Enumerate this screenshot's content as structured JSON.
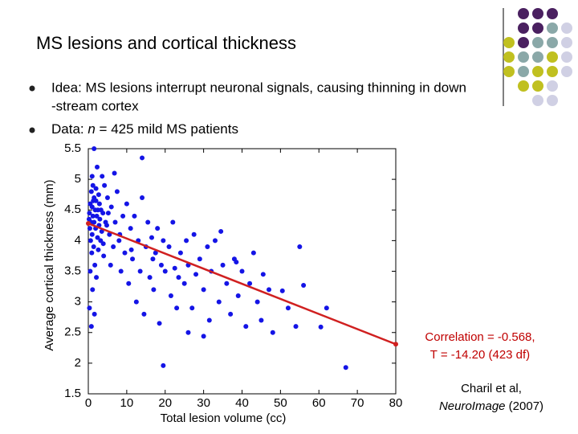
{
  "title": "MS lesions and cortical thickness",
  "bullets": [
    {
      "lines": [
        "Idea: MS lesions interrupt neuronal signals, causing thinning in down",
        "-stream cortex"
      ]
    },
    {
      "parts": [
        "Data: ",
        "n",
        " = 425 mild MS patients"
      ]
    }
  ],
  "chart_data": {
    "type": "scatter",
    "x_label": "Total lesion volume (cc)",
    "y_label": "Average cortical thickness (mm)",
    "xlim": [
      0,
      80
    ],
    "ylim": [
      1.5,
      5.5
    ],
    "xticks": [
      0,
      10,
      20,
      30,
      40,
      50,
      60,
      70,
      80
    ],
    "yticks": [
      1.5,
      2,
      2.5,
      3,
      3.5,
      4,
      4.5,
      5,
      5.5
    ],
    "series": [
      {
        "color": "#1414e6",
        "x": [
          1.5,
          14,
          1,
          1.2,
          0.8,
          1.5,
          2,
          0.5,
          1,
          1.8,
          2.5,
          0.3,
          1.2,
          2.2,
          3,
          0.7,
          1.5,
          2.8,
          0.4,
          1.9,
          3.5,
          1,
          2.4,
          0.6,
          3.2,
          1.4,
          2.6,
          0.9,
          4,
          1.7,
          0.5,
          2.1,
          1.1,
          0.3,
          1.6,
          0.8,
          2.9,
          3.8,
          4.5,
          5,
          4.2,
          3.6,
          2.3,
          5.5,
          6,
          6.5,
          7,
          5.8,
          7.5,
          8,
          8.5,
          9,
          6.8,
          9.5,
          10,
          10.5,
          11,
          11.5,
          12,
          12.5,
          13,
          13.5,
          14,
          14.5,
          15,
          15.5,
          16,
          16.5,
          17,
          17.5,
          18,
          18.5,
          19,
          19.5,
          20,
          19.5,
          21,
          21.5,
          22,
          22.5,
          23,
          24,
          25,
          25.5,
          26,
          26,
          27,
          27.5,
          28,
          29,
          30,
          30,
          31,
          31.5,
          32,
          33,
          34,
          35,
          36,
          37,
          38,
          39,
          40,
          41,
          42,
          43,
          44,
          45,
          47,
          48,
          50.5,
          52,
          54,
          55,
          56,
          60.5,
          62,
          67,
          2.7,
          3.3,
          4.8,
          0.2,
          1.3,
          2,
          3.9,
          5.2,
          8.2,
          11.2,
          16.8,
          23.5,
          34.5,
          38.5,
          45.5
        ],
        "values": [
          5.5,
          5.35,
          5.05,
          4.9,
          4.8,
          4.7,
          4.65,
          4.6,
          4.55,
          4.5,
          4.5,
          4.45,
          4.4,
          4.4,
          4.35,
          4.3,
          4.3,
          4.25,
          4.2,
          4.2,
          4.15,
          4.1,
          4.05,
          4,
          4,
          3.9,
          3.85,
          3.8,
          3.75,
          3.6,
          3.5,
          3.4,
          3.2,
          2.9,
          2.8,
          2.6,
          4.6,
          4.45,
          4.3,
          4.7,
          4.9,
          5.05,
          5.2,
          4.1,
          4.55,
          3.9,
          4.3,
          3.6,
          4.8,
          4,
          3.5,
          4.4,
          5.1,
          3.8,
          4.6,
          3.3,
          4.2,
          3.7,
          4.4,
          3,
          4,
          3.5,
          4.7,
          2.8,
          3.9,
          4.3,
          3.4,
          4.05,
          3.2,
          3.8,
          4.2,
          2.65,
          3.6,
          4,
          3.5,
          1.96,
          3.9,
          3.1,
          4.3,
          3.55,
          2.9,
          3.8,
          3.3,
          4,
          3.6,
          2.5,
          2.9,
          4.1,
          3.45,
          3.7,
          3.2,
          2.44,
          3.9,
          2.7,
          3.5,
          4,
          3,
          3.6,
          3.3,
          2.8,
          3.7,
          3.1,
          3.5,
          2.6,
          3.3,
          3.8,
          3,
          2.7,
          3.2,
          2.5,
          3.18,
          2.9,
          2.6,
          3.9,
          3.27,
          2.59,
          2.9,
          1.93,
          4.75,
          4.5,
          4.25,
          4.35,
          4.65,
          4.85,
          3.95,
          4.45,
          4.1,
          3.85,
          3.7,
          3.4,
          4.15,
          3.65,
          3.45
        ]
      }
    ],
    "fit_line": {
      "color": "#d02020",
      "x": [
        0,
        80
      ],
      "values": [
        4.28,
        2.31
      ]
    }
  },
  "annotation": [
    "Correlation = -0.568,",
    "T = -14.20 (423 df)"
  ],
  "citation": {
    "line1": "Charil et al,",
    "journal": "NeuroImage",
    "year": " (2007)"
  }
}
